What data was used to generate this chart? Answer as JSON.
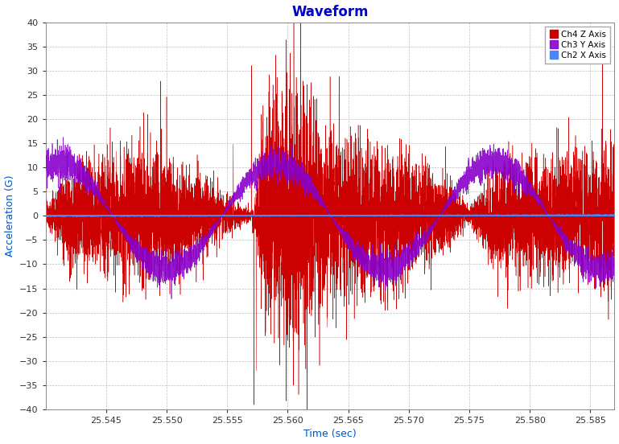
{
  "title": "Waveform",
  "xlabel": "Time (sec)",
  "ylabel": "Acceleration (G)",
  "xlim": [
    25.54,
    25.587
  ],
  "ylim": [
    -40,
    40
  ],
  "yticks": [
    -40,
    -35,
    -30,
    -25,
    -20,
    -15,
    -10,
    -5,
    0,
    5,
    10,
    15,
    20,
    25,
    30,
    35,
    40
  ],
  "xticks": [
    25.545,
    25.55,
    25.555,
    25.56,
    25.565,
    25.57,
    25.575,
    25.58,
    25.585
  ],
  "plot_bg_color": "#ffffff",
  "grid_color": "#c0c0c0",
  "title_color": "#0000cc",
  "xlabel_color": "#0055cc",
  "ylabel_color": "#0055cc",
  "ch2_color": "#4488ff",
  "ch3_color": "#8800cc",
  "ch4_color": "#cc0000",
  "legend_labels": [
    "Ch2 X Axis",
    "Ch3 Y Axis",
    "Ch4 Z Axis"
  ],
  "seed": 42,
  "t_start": 25.54,
  "t_end": 25.587,
  "n_points": 8000
}
